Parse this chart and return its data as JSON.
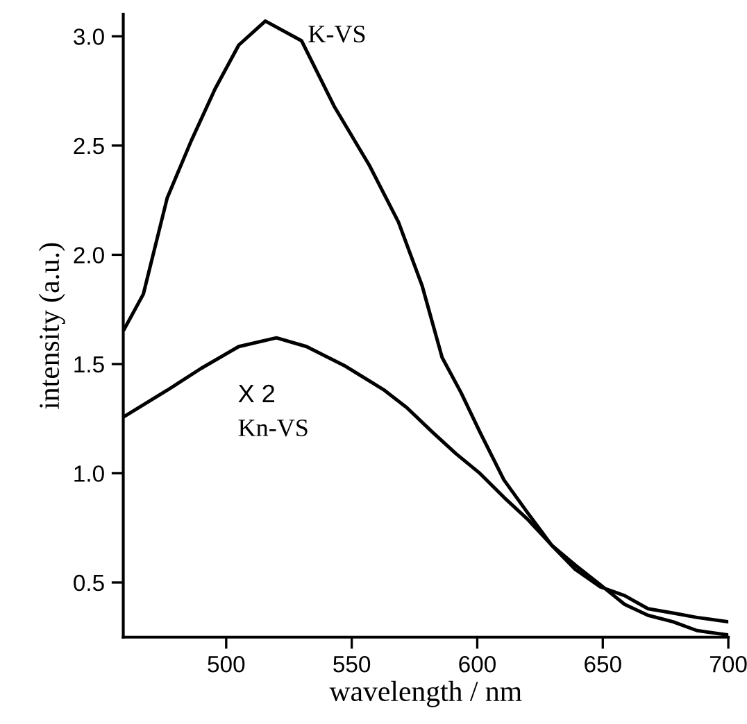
{
  "chart_data": {
    "type": "line",
    "xlabel": "wavelength / nm",
    "ylabel": "intensity (a.u.)",
    "xlim": [
      459,
      700
    ],
    "ylim": [
      0.25,
      3.1
    ],
    "xticks": [
      500,
      550,
      600,
      650,
      700
    ],
    "yticks": [
      0.5,
      {
        "value": 1,
        "label": "1.0"
      },
      1.5,
      {
        "value": 2,
        "label": "2.0"
      },
      2.5,
      {
        "value": 3,
        "label": "3.0"
      }
    ],
    "grid": false,
    "legend": false,
    "marker": "none",
    "line_style": "solid",
    "annotations": [
      "X 2"
    ],
    "series": [
      {
        "name": "K-VS",
        "color": "#000000",
        "x": [
          459.4,
          467,
          476.5,
          486,
          495.6,
          505,
          515.6,
          530,
          543,
          557,
          568.6,
          578,
          586,
          593.5,
          601,
          610.6,
          620,
          629.7,
          639,
          649,
          658.7,
          668,
          678,
          687.5,
          700
        ],
        "values": [
          1.66,
          1.82,
          2.26,
          2.52,
          2.76,
          2.96,
          3.07,
          2.98,
          2.68,
          2.41,
          2.15,
          1.86,
          1.53,
          1.37,
          1.19,
          0.97,
          0.82,
          0.67,
          0.58,
          0.49,
          0.4,
          0.35,
          0.32,
          0.28,
          0.26
        ]
      },
      {
        "name": "Kn-VS",
        "color": "#000000",
        "x": [
          459.4,
          476.5,
          490,
          505,
          520,
          532,
          547.5,
          563,
          572,
          582,
          591.5,
          601,
          610.6,
          620,
          629.7,
          639,
          649,
          658.7,
          668,
          678,
          687.5,
          700
        ],
        "values": [
          1.26,
          1.38,
          1.48,
          1.58,
          1.62,
          1.58,
          1.49,
          1.38,
          1.3,
          1.19,
          1.09,
          1.0,
          0.89,
          0.79,
          0.67,
          0.56,
          0.48,
          0.44,
          0.38,
          0.36,
          0.34,
          0.32
        ]
      }
    ]
  }
}
